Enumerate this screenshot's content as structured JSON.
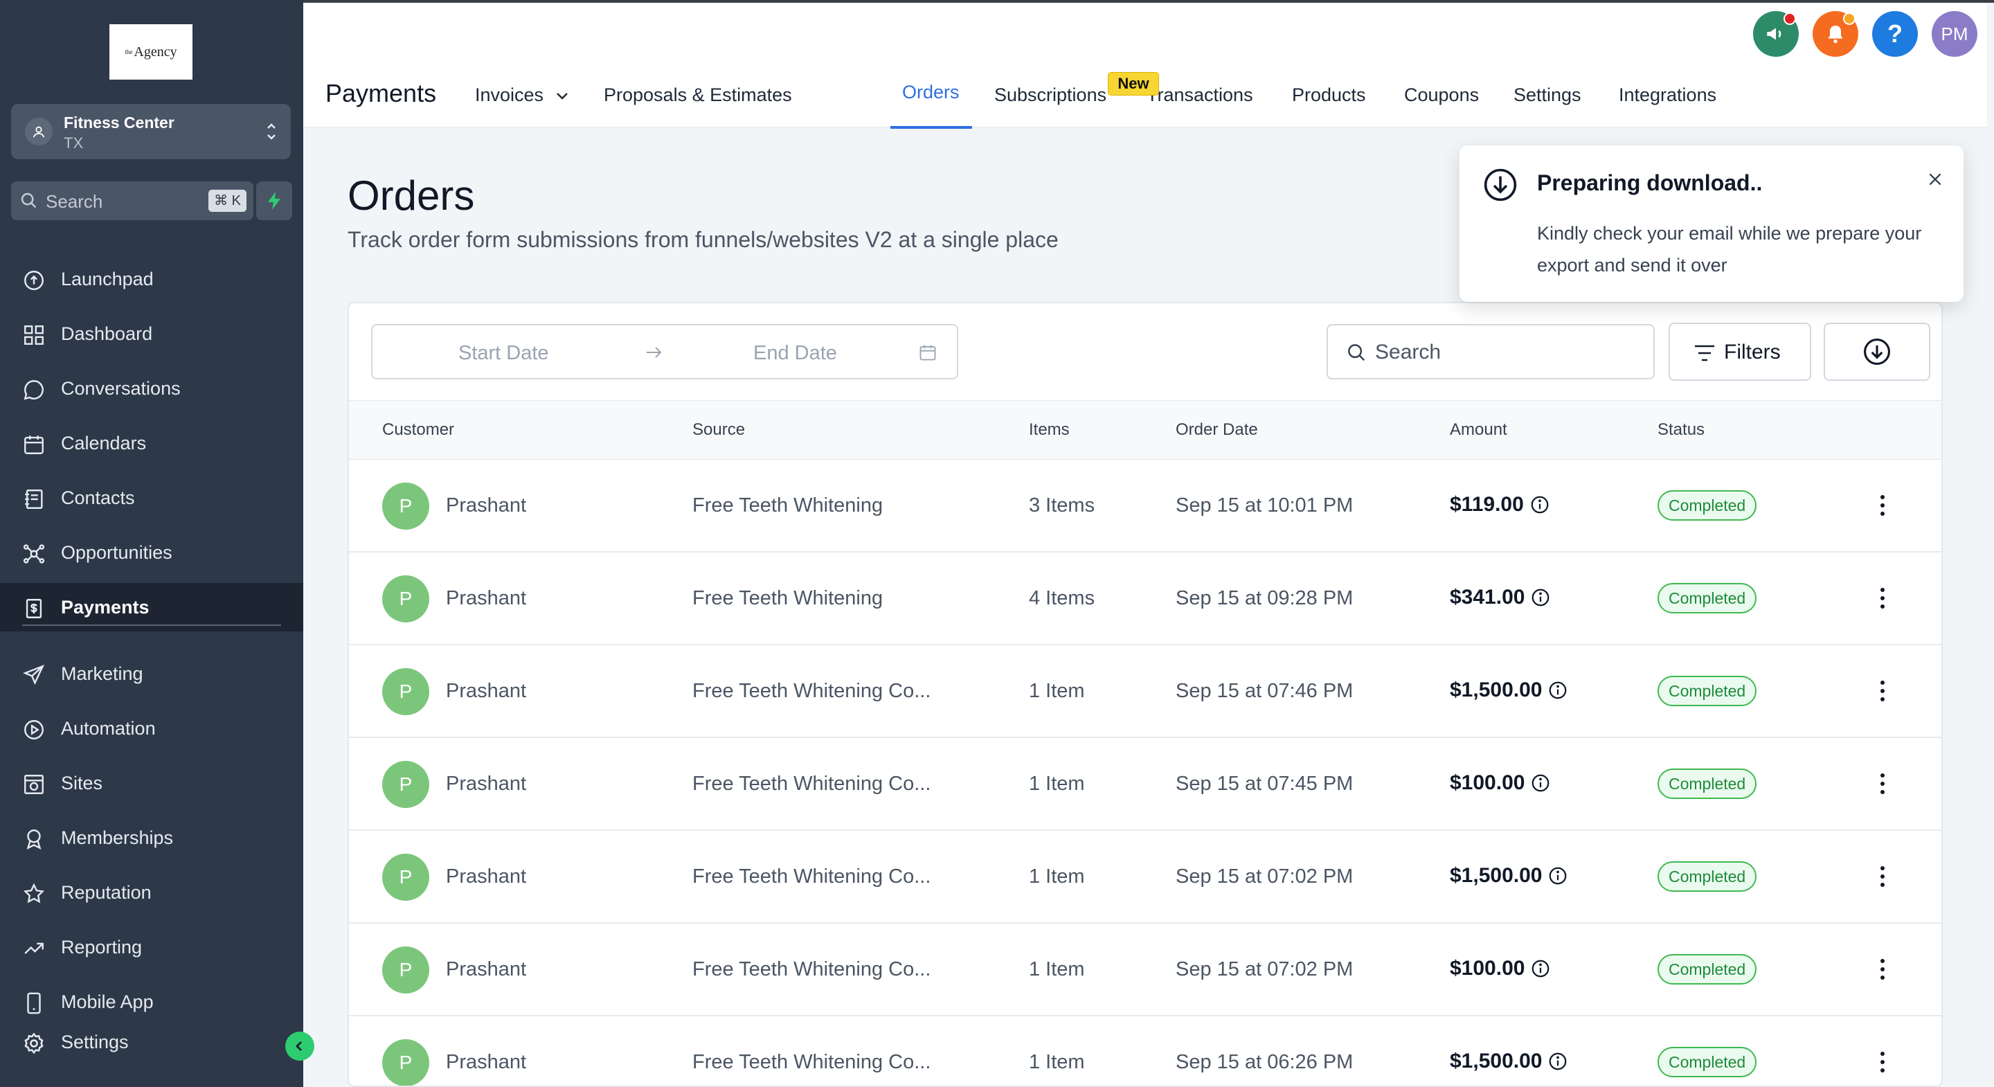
{
  "sidebar": {
    "logo_text": "Agency",
    "logo_sup": "the",
    "location": {
      "name": "Fitness Center",
      "sub": "TX"
    },
    "search": {
      "placeholder": "Search",
      "shortcut": "⌘ K"
    },
    "items": [
      {
        "label": "Launchpad",
        "icon": "rocket-icon"
      },
      {
        "label": "Dashboard",
        "icon": "grid-icon"
      },
      {
        "label": "Conversations",
        "icon": "chat-icon"
      },
      {
        "label": "Calendars",
        "icon": "calendar-icon"
      },
      {
        "label": "Contacts",
        "icon": "contacts-icon"
      },
      {
        "label": "Opportunities",
        "icon": "opportunities-icon"
      },
      {
        "label": "Payments",
        "icon": "payments-icon",
        "active": true
      }
    ],
    "items2": [
      {
        "label": "Marketing",
        "icon": "send-icon"
      },
      {
        "label": "Automation",
        "icon": "automation-icon"
      },
      {
        "label": "Sites",
        "icon": "sites-icon"
      },
      {
        "label": "Memberships",
        "icon": "membership-icon"
      },
      {
        "label": "Reputation",
        "icon": "star-icon"
      },
      {
        "label": "Reporting",
        "icon": "trend-icon"
      },
      {
        "label": "Mobile App",
        "icon": "phone-icon"
      }
    ],
    "settings_label": "Settings"
  },
  "header": {
    "avatar_initials": "PM",
    "help_glyph": "?",
    "section_title": "Payments",
    "tabs": [
      {
        "label": "Invoices"
      },
      {
        "label": "Proposals & Estimates"
      },
      {
        "label": "Orders",
        "active": true
      },
      {
        "label": "Subscriptions"
      },
      {
        "label": "Transactions"
      },
      {
        "label": "Products"
      },
      {
        "label": "Coupons"
      },
      {
        "label": "Settings"
      },
      {
        "label": "Integrations"
      }
    ],
    "new_badge": "New"
  },
  "page": {
    "title": "Orders",
    "subtitle": "Track order form submissions from funnels/websites V2 at a single place"
  },
  "toolbar": {
    "start_date_placeholder": "Start Date",
    "end_date_placeholder": "End Date",
    "search_placeholder": "Search",
    "filters_label": "Filters"
  },
  "table": {
    "columns": [
      "Customer",
      "Source",
      "Items",
      "Order Date",
      "Amount",
      "Status"
    ],
    "rows": [
      {
        "initial": "P",
        "customer": "Prashant",
        "source": "Free Teeth Whitening",
        "items": "3 Items",
        "date": "Sep 15 at 10:01 PM",
        "amount": "$119.00",
        "status": "Completed"
      },
      {
        "initial": "P",
        "customer": "Prashant",
        "source": "Free Teeth Whitening",
        "items": "4 Items",
        "date": "Sep 15 at 09:28 PM",
        "amount": "$341.00",
        "status": "Completed"
      },
      {
        "initial": "P",
        "customer": "Prashant",
        "source": "Free Teeth Whitening Co...",
        "items": "1 Item",
        "date": "Sep 15 at 07:46 PM",
        "amount": "$1,500.00",
        "status": "Completed"
      },
      {
        "initial": "P",
        "customer": "Prashant",
        "source": "Free Teeth Whitening Co...",
        "items": "1 Item",
        "date": "Sep 15 at 07:45 PM",
        "amount": "$100.00",
        "status": "Completed"
      },
      {
        "initial": "P",
        "customer": "Prashant",
        "source": "Free Teeth Whitening Co...",
        "items": "1 Item",
        "date": "Sep 15 at 07:02 PM",
        "amount": "$1,500.00",
        "status": "Completed"
      },
      {
        "initial": "P",
        "customer": "Prashant",
        "source": "Free Teeth Whitening Co...",
        "items": "1 Item",
        "date": "Sep 15 at 07:02 PM",
        "amount": "$100.00",
        "status": "Completed"
      },
      {
        "initial": "P",
        "customer": "Prashant",
        "source": "Free Teeth Whitening Co...",
        "items": "1 Item",
        "date": "Sep 15 at 06:26 PM",
        "amount": "$1,500.00",
        "status": "Completed"
      }
    ]
  },
  "toast": {
    "title": "Preparing download..",
    "body": "Kindly check your email while we prepare your export and send it over"
  },
  "colors": {
    "accent": "#2f6fe0",
    "sidebar": "#2d3848",
    "status_green": "#3fb950",
    "avatar_green": "#7cc67c",
    "badge_yellow": "#f7d633"
  }
}
